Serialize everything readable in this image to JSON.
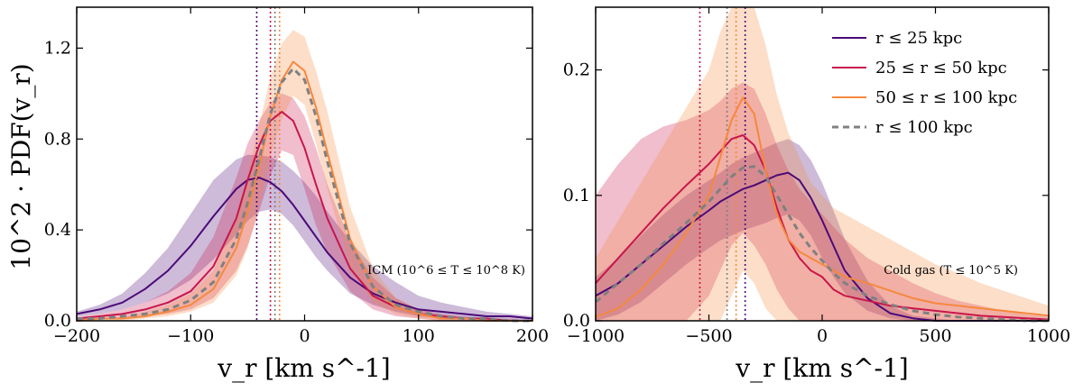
{
  "colors": {
    "r25": "#4b0a78",
    "r25_50": "#c8164b",
    "r50_100": "#f6883d",
    "total": "#808080"
  },
  "chart_data": [
    {
      "type": "line",
      "panel": "left",
      "xlabel": "v_r [km s^-1]",
      "ylabel": "10^2 · PDF(v_r)",
      "xlim": [
        -200,
        200
      ],
      "ylim": [
        0,
        1.38
      ],
      "xticks": [
        "−200",
        "−100",
        "0",
        "100",
        "200"
      ],
      "yticks": [
        "0.0",
        "0.4",
        "0.8",
        "1.2"
      ],
      "annotation": "ICM (10^6 ≤ T ≤ 10^8 K)",
      "vlines": [
        {
          "series": "r ≤ 25 kpc",
          "x": -42
        },
        {
          "series": "25 ≤ r ≤ 50 kpc",
          "x": -30
        },
        {
          "series": "r ≤ 100 kpc",
          "x": -26
        },
        {
          "series": "50 ≤ r ≤ 100 kpc",
          "x": -22
        }
      ],
      "x": [
        -200,
        -180,
        -160,
        -140,
        -120,
        -100,
        -80,
        -60,
        -50,
        -40,
        -30,
        -20,
        -10,
        0,
        10,
        20,
        40,
        60,
        80,
        100,
        120,
        140,
        160,
        180,
        200
      ],
      "series": [
        {
          "name": "r ≤ 25 kpc",
          "values": [
            0.03,
            0.05,
            0.08,
            0.14,
            0.22,
            0.33,
            0.46,
            0.58,
            0.62,
            0.63,
            0.61,
            0.57,
            0.51,
            0.44,
            0.37,
            0.3,
            0.19,
            0.12,
            0.08,
            0.05,
            0.04,
            0.03,
            0.02,
            0.02,
            0.01
          ],
          "band": [
            [
              0.02,
              0.04
            ],
            [
              0.03,
              0.07
            ],
            [
              0.05,
              0.12
            ],
            [
              0.08,
              0.21
            ],
            [
              0.12,
              0.32
            ],
            [
              0.18,
              0.47
            ],
            [
              0.27,
              0.62
            ],
            [
              0.38,
              0.71
            ],
            [
              0.44,
              0.73
            ],
            [
              0.48,
              0.73
            ],
            [
              0.49,
              0.72
            ],
            [
              0.47,
              0.7
            ],
            [
              0.42,
              0.66
            ],
            [
              0.35,
              0.61
            ],
            [
              0.28,
              0.55
            ],
            [
              0.22,
              0.48
            ],
            [
              0.12,
              0.35
            ],
            [
              0.07,
              0.24
            ],
            [
              0.04,
              0.17
            ],
            [
              0.02,
              0.11
            ],
            [
              0.01,
              0.08
            ],
            [
              0.01,
              0.06
            ],
            [
              0.01,
              0.04
            ],
            [
              0.0,
              0.03
            ],
            [
              0.0,
              0.02
            ]
          ]
        },
        {
          "name": "25 ≤ r ≤ 50 kpc",
          "values": [
            0.01,
            0.02,
            0.03,
            0.05,
            0.08,
            0.13,
            0.24,
            0.45,
            0.62,
            0.77,
            0.88,
            0.92,
            0.88,
            0.76,
            0.6,
            0.45,
            0.23,
            0.11,
            0.06,
            0.03,
            0.02,
            0.01,
            0.01,
            0.0,
            0.0
          ],
          "band": [
            [
              0.0,
              0.02
            ],
            [
              0.01,
              0.03
            ],
            [
              0.01,
              0.05
            ],
            [
              0.02,
              0.08
            ],
            [
              0.03,
              0.13
            ],
            [
              0.05,
              0.21
            ],
            [
              0.1,
              0.37
            ],
            [
              0.22,
              0.63
            ],
            [
              0.33,
              0.78
            ],
            [
              0.48,
              0.88
            ],
            [
              0.64,
              0.96
            ],
            [
              0.75,
              1.0
            ],
            [
              0.73,
              0.98
            ],
            [
              0.58,
              0.9
            ],
            [
              0.42,
              0.76
            ],
            [
              0.3,
              0.6
            ],
            [
              0.13,
              0.35
            ],
            [
              0.05,
              0.19
            ],
            [
              0.02,
              0.1
            ],
            [
              0.01,
              0.05
            ],
            [
              0.0,
              0.03
            ],
            [
              0.0,
              0.02
            ],
            [
              0.0,
              0.01
            ],
            [
              0.0,
              0.01
            ],
            [
              0.0,
              0.0
            ]
          ]
        },
        {
          "name": "50 ≤ r ≤ 100 kpc",
          "values": [
            0.0,
            0.01,
            0.01,
            0.02,
            0.04,
            0.07,
            0.14,
            0.32,
            0.48,
            0.68,
            0.9,
            1.06,
            1.14,
            1.1,
            0.94,
            0.74,
            0.36,
            0.15,
            0.06,
            0.03,
            0.01,
            0.01,
            0.0,
            0.0,
            0.0
          ],
          "band": [
            [
              0.0,
              0.01
            ],
            [
              0.0,
              0.01
            ],
            [
              0.0,
              0.02
            ],
            [
              0.01,
              0.04
            ],
            [
              0.02,
              0.07
            ],
            [
              0.04,
              0.12
            ],
            [
              0.08,
              0.22
            ],
            [
              0.2,
              0.46
            ],
            [
              0.32,
              0.64
            ],
            [
              0.5,
              0.86
            ],
            [
              0.72,
              1.07
            ],
            [
              0.89,
              1.22
            ],
            [
              0.99,
              1.28
            ],
            [
              0.95,
              1.25
            ],
            [
              0.78,
              1.1
            ],
            [
              0.58,
              0.92
            ],
            [
              0.24,
              0.5
            ],
            [
              0.08,
              0.23
            ],
            [
              0.03,
              0.1
            ],
            [
              0.01,
              0.05
            ],
            [
              0.0,
              0.02
            ],
            [
              0.0,
              0.01
            ],
            [
              0.0,
              0.01
            ],
            [
              0.0,
              0.0
            ],
            [
              0.0,
              0.0
            ]
          ]
        },
        {
          "name": "r ≤ 100 kpc",
          "values": [
            0.01,
            0.01,
            0.02,
            0.03,
            0.05,
            0.09,
            0.17,
            0.36,
            0.52,
            0.71,
            0.91,
            1.05,
            1.11,
            1.06,
            0.9,
            0.7,
            0.34,
            0.15,
            0.07,
            0.04,
            0.02,
            0.01,
            0.01,
            0.0,
            0.0
          ]
        }
      ]
    },
    {
      "type": "line",
      "panel": "right",
      "xlabel": "v_r [km s^-1]",
      "xlim": [
        -1000,
        1000
      ],
      "ylim": [
        0,
        0.25
      ],
      "xticks": [
        "−1000",
        "−500",
        "0",
        "500",
        "1000"
      ],
      "yticks": [
        "0.0",
        "0.1",
        "0.2"
      ],
      "annotation": "Cold gas (T ≤ 10^5 K)",
      "vlines": [
        {
          "series": "25 ≤ r ≤ 50 kpc",
          "x": -540
        },
        {
          "series": "r ≤ 100 kpc",
          "x": -420
        },
        {
          "series": "50 ≤ r ≤ 100 kpc",
          "x": -380
        },
        {
          "series": "r ≤ 25 kpc",
          "x": -340
        }
      ],
      "x": [
        -1000,
        -900,
        -800,
        -700,
        -600,
        -500,
        -450,
        -400,
        -350,
        -300,
        -250,
        -200,
        -150,
        -100,
        -50,
        0,
        50,
        100,
        200,
        300,
        400,
        500,
        600,
        700,
        800,
        900,
        1000
      ],
      "series": [
        {
          "name": "r ≤ 25 kpc",
          "values": [
            0.02,
            0.03,
            0.045,
            0.06,
            0.075,
            0.088,
            0.095,
            0.1,
            0.105,
            0.108,
            0.112,
            0.116,
            0.118,
            0.112,
            0.098,
            0.08,
            0.06,
            0.04,
            0.018,
            0.006,
            0.002,
            0.0,
            0.0,
            0.0,
            0.0,
            0.0,
            0.0
          ],
          "band": [
            [
              0.0,
              0.035
            ],
            [
              0.005,
              0.05
            ],
            [
              0.015,
              0.068
            ],
            [
              0.03,
              0.085
            ],
            [
              0.045,
              0.1
            ],
            [
              0.058,
              0.112
            ],
            [
              0.064,
              0.118
            ],
            [
              0.068,
              0.125
            ],
            [
              0.072,
              0.13
            ],
            [
              0.075,
              0.134
            ],
            [
              0.078,
              0.138
            ],
            [
              0.082,
              0.142
            ],
            [
              0.085,
              0.145
            ],
            [
              0.08,
              0.14
            ],
            [
              0.068,
              0.128
            ],
            [
              0.05,
              0.11
            ],
            [
              0.035,
              0.088
            ],
            [
              0.022,
              0.065
            ],
            [
              0.008,
              0.032
            ],
            [
              0.002,
              0.012
            ],
            [
              0.0,
              0.004
            ],
            [
              0.0,
              0.002
            ],
            [
              0.0,
              0.0
            ],
            [
              0.0,
              0.0
            ],
            [
              0.0,
              0.0
            ],
            [
              0.0,
              0.0
            ],
            [
              0.0,
              0.0
            ]
          ]
        },
        {
          "name": "25 ≤ r ≤ 50 kpc",
          "values": [
            0.03,
            0.05,
            0.07,
            0.09,
            0.108,
            0.125,
            0.135,
            0.145,
            0.148,
            0.14,
            0.12,
            0.09,
            0.065,
            0.05,
            0.04,
            0.035,
            0.025,
            0.02,
            0.016,
            0.012,
            0.01,
            0.008,
            0.006,
            0.004,
            0.003,
            0.002,
            0.001
          ],
          "band": [
            [
              0.0,
              0.1
            ],
            [
              0.0,
              0.125
            ],
            [
              0.0,
              0.145
            ],
            [
              0.0,
              0.155
            ],
            [
              0.0,
              0.16
            ],
            [
              0.02,
              0.168
            ],
            [
              0.04,
              0.175
            ],
            [
              0.06,
              0.185
            ],
            [
              0.07,
              0.19
            ],
            [
              0.06,
              0.185
            ],
            [
              0.045,
              0.165
            ],
            [
              0.025,
              0.14
            ],
            [
              0.01,
              0.12
            ],
            [
              0.0,
              0.105
            ],
            [
              0.0,
              0.095
            ],
            [
              0.0,
              0.085
            ],
            [
              0.0,
              0.075
            ],
            [
              0.0,
              0.065
            ],
            [
              0.0,
              0.05
            ],
            [
              0.0,
              0.04
            ],
            [
              0.0,
              0.03
            ],
            [
              0.0,
              0.022
            ],
            [
              0.0,
              0.016
            ],
            [
              0.0,
              0.012
            ],
            [
              0.0,
              0.008
            ],
            [
              0.0,
              0.005
            ],
            [
              0.0,
              0.003
            ]
          ]
        },
        {
          "name": "50 ≤ r ≤ 100 kpc",
          "values": [
            0.003,
            0.01,
            0.025,
            0.045,
            0.07,
            0.1,
            0.13,
            0.16,
            0.178,
            0.165,
            0.12,
            0.085,
            0.065,
            0.055,
            0.05,
            0.045,
            0.04,
            0.035,
            0.03,
            0.024,
            0.018,
            0.014,
            0.012,
            0.01,
            0.008,
            0.006,
            0.004
          ],
          "band": [
            [
              0.0,
              0.05
            ],
            [
              0.0,
              0.08
            ],
            [
              0.0,
              0.11
            ],
            [
              0.0,
              0.14
            ],
            [
              0.0,
              0.17
            ],
            [
              0.0,
              0.2
            ],
            [
              0.0,
              0.23
            ],
            [
              0.02,
              0.25
            ],
            [
              0.04,
              0.25
            ],
            [
              0.03,
              0.25
            ],
            [
              0.01,
              0.22
            ],
            [
              0.0,
              0.18
            ],
            [
              0.0,
              0.15
            ],
            [
              0.0,
              0.13
            ],
            [
              0.0,
              0.11
            ],
            [
              0.0,
              0.1
            ],
            [
              0.0,
              0.09
            ],
            [
              0.0,
              0.085
            ],
            [
              0.0,
              0.075
            ],
            [
              0.0,
              0.065
            ],
            [
              0.0,
              0.055
            ],
            [
              0.0,
              0.045
            ],
            [
              0.0,
              0.038
            ],
            [
              0.0,
              0.03
            ],
            [
              0.0,
              0.024
            ],
            [
              0.0,
              0.018
            ],
            [
              0.0,
              0.012
            ]
          ]
        },
        {
          "name": "r ≤ 100 kpc",
          "values": [
            0.015,
            0.03,
            0.045,
            0.062,
            0.078,
            0.095,
            0.105,
            0.115,
            0.122,
            0.123,
            0.115,
            0.1,
            0.085,
            0.07,
            0.058,
            0.048,
            0.038,
            0.03,
            0.02,
            0.013,
            0.008,
            0.005,
            0.003,
            0.002,
            0.001,
            0.0,
            0.0
          ]
        }
      ]
    }
  ],
  "legend": [
    {
      "label": "r ≤ 25 kpc",
      "style": "solid",
      "color": "#4b0a78"
    },
    {
      "label": "25 ≤ r ≤ 50 kpc",
      "style": "solid",
      "color": "#c8164b"
    },
    {
      "label": "50 ≤ r ≤ 100 kpc",
      "style": "solid",
      "color": "#f6883d"
    },
    {
      "label": "r ≤ 100 kpc",
      "style": "dashed",
      "color": "#808080"
    }
  ]
}
